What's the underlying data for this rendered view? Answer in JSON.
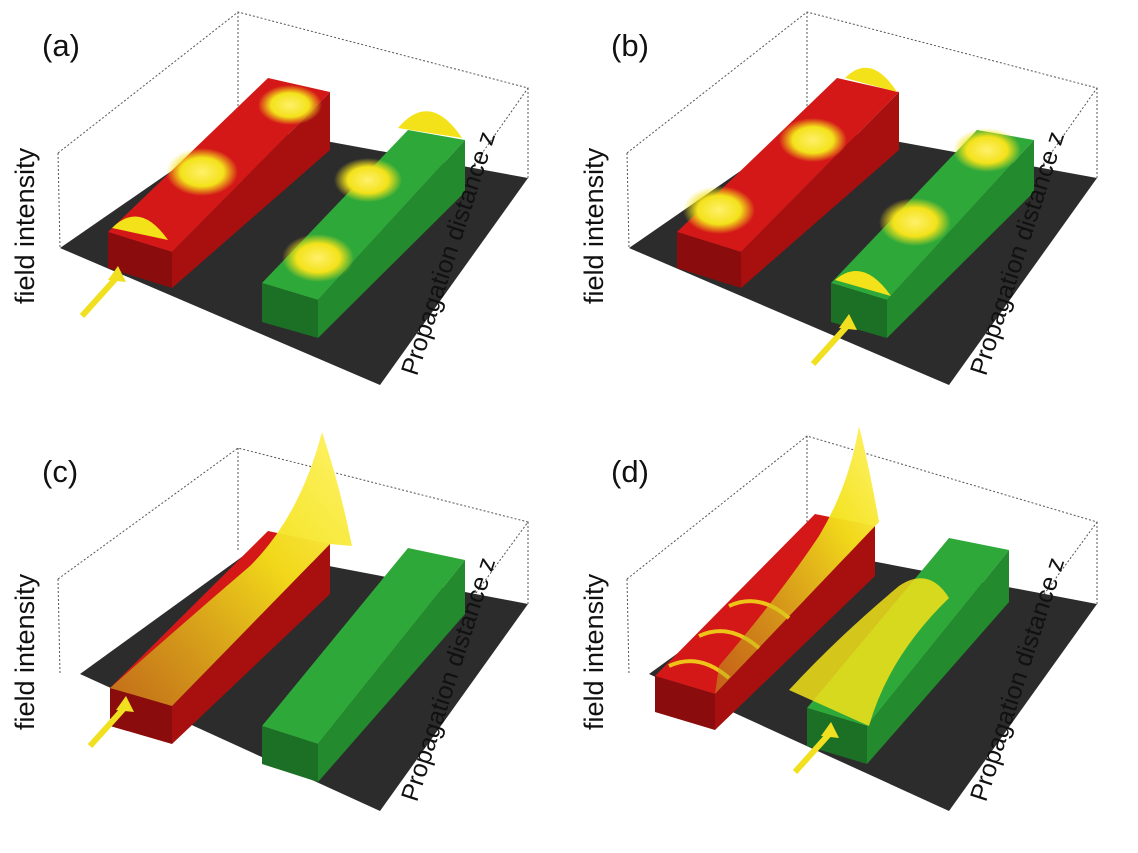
{
  "panels": [
    {
      "id": "a",
      "label": "(a)"
    },
    {
      "id": "b",
      "label": "(b)"
    },
    {
      "id": "c",
      "label": "(c)"
    },
    {
      "id": "d",
      "label": "(d)"
    }
  ],
  "axes": {
    "y_label": "field intensity",
    "z_label": "Propagation distance z"
  },
  "colors": {
    "left_waveguide": "#d41818",
    "right_waveguide": "#2fa83a",
    "field": "#f3e21a",
    "floor": "#2c2c2c",
    "arrow": "#f0e020"
  }
}
